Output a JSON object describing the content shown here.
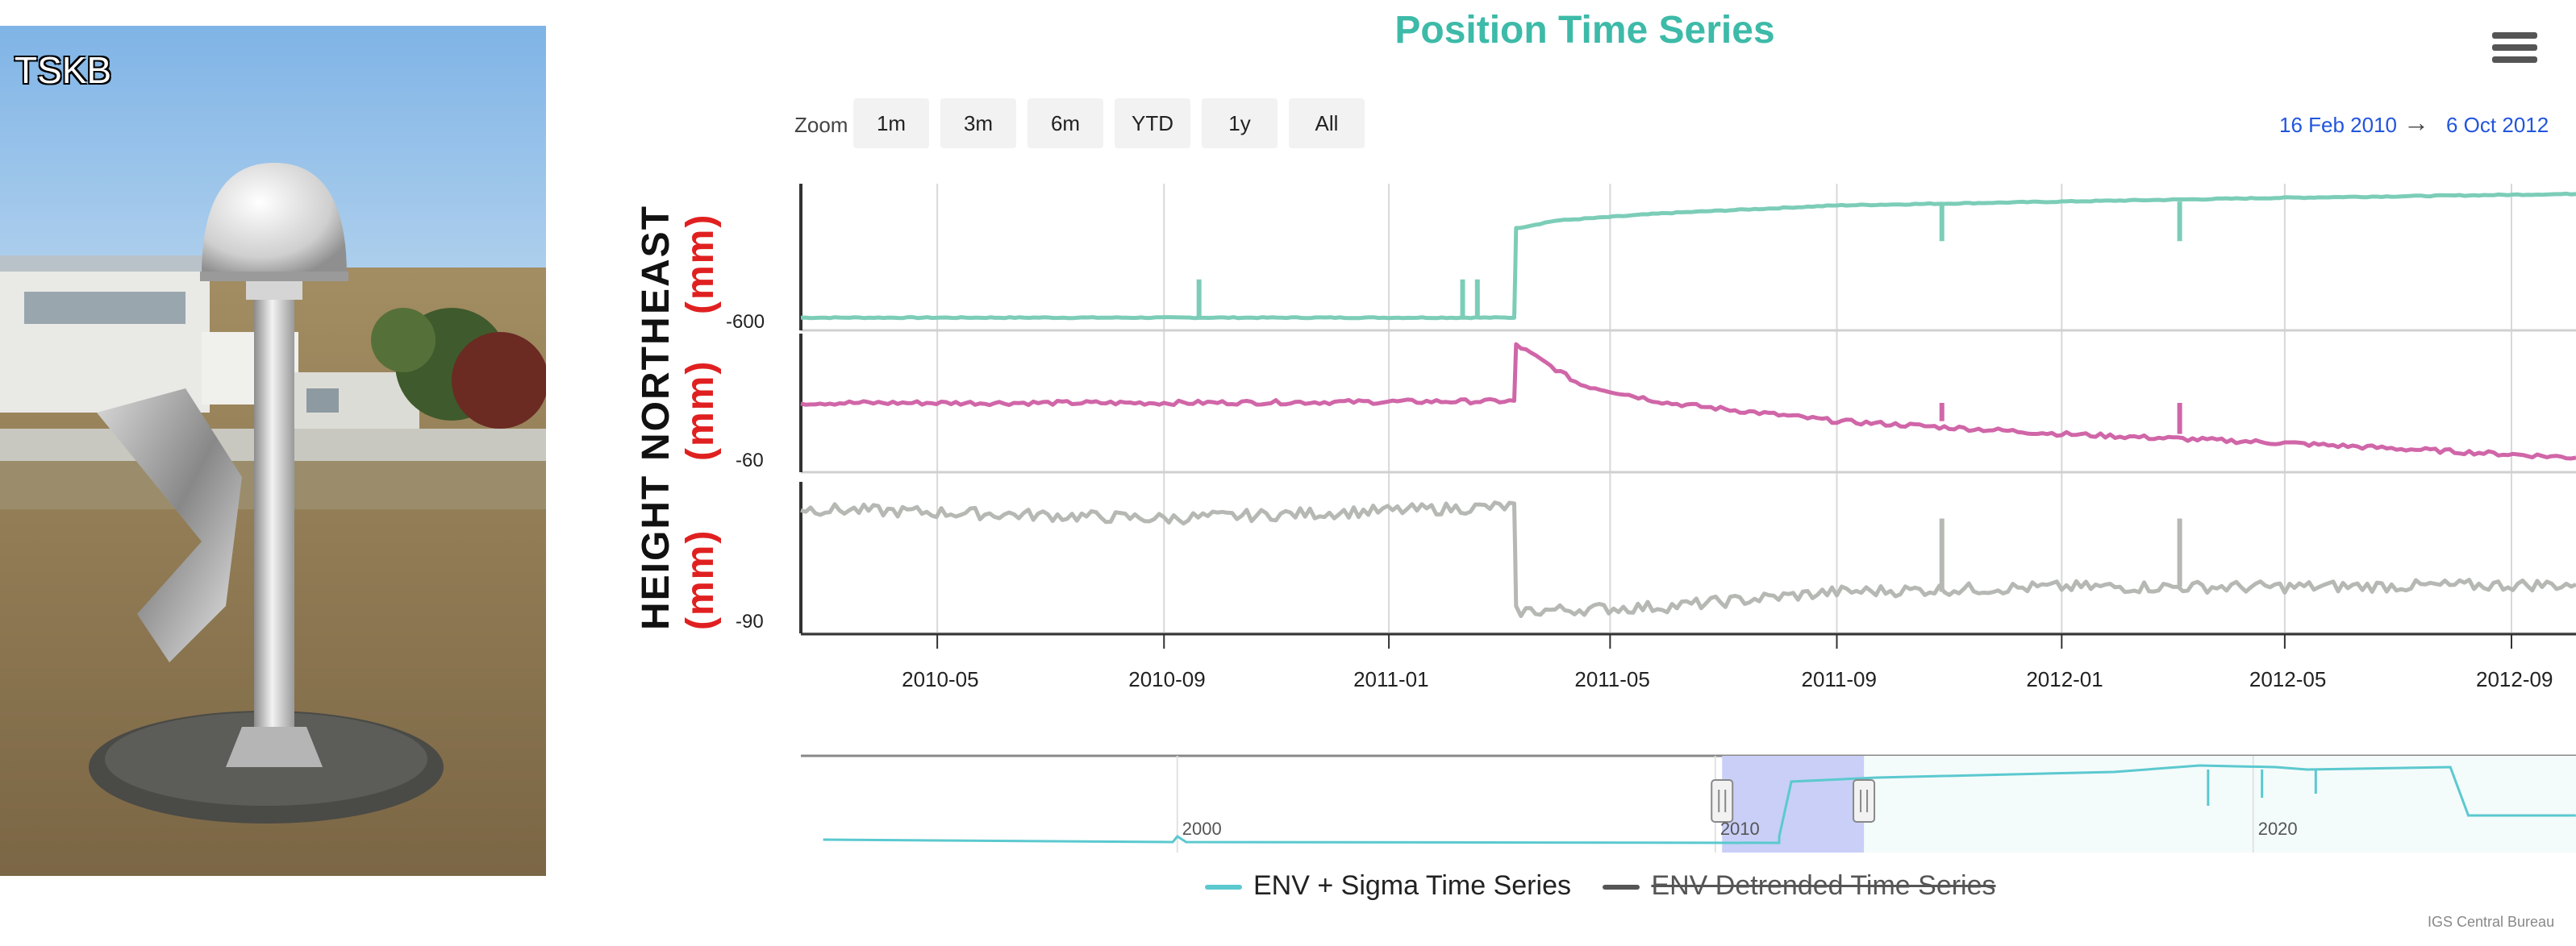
{
  "station": {
    "label": "TSKB"
  },
  "chart_data": {
    "type": "line",
    "title": "Position Time Series",
    "zoom": {
      "label": "Zoom",
      "buttons": [
        "1m",
        "3m",
        "6m",
        "YTD",
        "1y",
        "All"
      ]
    },
    "range": {
      "from": "16 Feb 2010",
      "arrow": "→",
      "to": "6 Oct 2012"
    },
    "xlim": [
      "2010-02-16",
      "2012-10-06"
    ],
    "x_ticks": [
      "2010-05",
      "2010-09",
      "2011-01",
      "2011-05",
      "2011-09",
      "2012-01",
      "2012-05",
      "2012-09"
    ],
    "panels": [
      {
        "name": "EAST",
        "label": "EAST",
        "unit": "(mm)",
        "color": "#7ccdb8",
        "ytick": "-600",
        "series": [
          {
            "x": "2010-02-16",
            "y": -600
          },
          {
            "x": "2010-09-15",
            "y": -600
          },
          {
            "x": "2011-03-10",
            "y": -600
          },
          {
            "x": "2011-03-11",
            "y": -530
          },
          {
            "x": "2011-04-01",
            "y": -524
          },
          {
            "x": "2011-06-01",
            "y": -518
          },
          {
            "x": "2011-09-01",
            "y": -512
          },
          {
            "x": "2012-01-01",
            "y": -509
          },
          {
            "x": "2012-05-01",
            "y": -506
          },
          {
            "x": "2012-10-06",
            "y": -503
          }
        ],
        "spikes": [
          {
            "x": "2010-09-20",
            "y": -570
          },
          {
            "x": "2011-02-10",
            "y": -570
          },
          {
            "x": "2011-02-18",
            "y": -570
          },
          {
            "x": "2011-10-28",
            "y": -540
          },
          {
            "x": "2012-03-05",
            "y": -540
          }
        ]
      },
      {
        "name": "NORTH",
        "label": "NORTH",
        "unit": "(mm)",
        "color": "#d066a8",
        "ytick": "-60",
        "series": [
          {
            "x": "2010-02-16",
            "y": -20
          },
          {
            "x": "2010-09-01",
            "y": -20
          },
          {
            "x": "2011-03-10",
            "y": -19
          },
          {
            "x": "2011-03-11",
            "y": 12
          },
          {
            "x": "2011-04-15",
            "y": -10
          },
          {
            "x": "2011-06-01",
            "y": -20
          },
          {
            "x": "2011-09-01",
            "y": -30
          },
          {
            "x": "2012-01-01",
            "y": -37
          },
          {
            "x": "2012-05-01",
            "y": -42
          },
          {
            "x": "2012-10-06",
            "y": -50
          }
        ],
        "spikes": [
          {
            "x": "2011-10-28",
            "y": -20
          },
          {
            "x": "2012-03-05",
            "y": -20
          }
        ]
      },
      {
        "name": "HEIGHT",
        "label": "HEIGHT",
        "unit": "(mm)",
        "color": "#b5b8b3",
        "ytick": "-90",
        "series": [
          {
            "x": "2010-02-16",
            "y": -31
          },
          {
            "x": "2010-09-01",
            "y": -35
          },
          {
            "x": "2011-03-10",
            "y": -30
          },
          {
            "x": "2011-03-11",
            "y": -73
          },
          {
            "x": "2011-06-01",
            "y": -71
          },
          {
            "x": "2011-09-01",
            "y": -65
          },
          {
            "x": "2012-01-01",
            "y": -63
          },
          {
            "x": "2012-05-01",
            "y": -63
          },
          {
            "x": "2012-10-06",
            "y": -62
          }
        ],
        "spikes": [
          {
            "x": "2011-10-28",
            "y": -35
          },
          {
            "x": "2012-03-05",
            "y": -35
          }
        ]
      }
    ],
    "navigator": {
      "x_ticks": [
        "2000",
        "2010",
        "2020"
      ],
      "selected": [
        "2010-02-16",
        "2012-10-06"
      ]
    },
    "legend": [
      {
        "name": "ENV + Sigma Time Series",
        "color": "#5bc9cf",
        "visible": true
      },
      {
        "name": "ENV Detrended Time Series",
        "color": "#555555",
        "visible": false
      }
    ]
  },
  "credits": "IGS Central Bureau"
}
